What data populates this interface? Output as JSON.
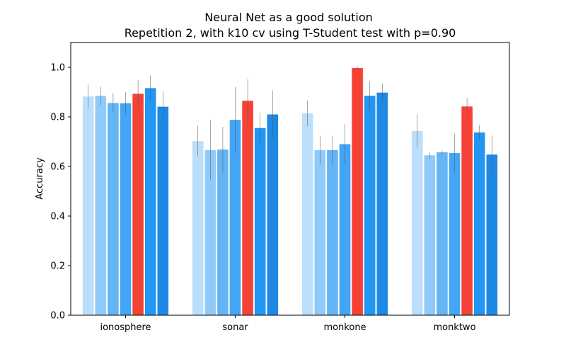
{
  "chart_data": {
    "type": "bar",
    "title": "Neural Net as a good solution",
    "subtitle": "Repetition 2, with k10 cv using T-Student test with p=0.90",
    "xlabel": "",
    "ylabel": "Accuracy",
    "ylim": [
      0.0,
      1.1
    ],
    "yticks": [
      "0.0",
      "0.2",
      "0.4",
      "0.6",
      "0.8",
      "1.0"
    ],
    "grid": false,
    "legend": "none",
    "categories": [
      "ionosphere",
      "sonar",
      "monkone",
      "monktwo"
    ],
    "series": [
      {
        "color": "#bbdefb",
        "values": [
          0.882,
          0.702,
          0.814,
          0.743
        ],
        "errors": [
          0.048,
          0.062,
          0.052,
          0.068
        ]
      },
      {
        "color": "#90caf9",
        "values": [
          0.885,
          0.666,
          0.666,
          0.645
        ],
        "errors": [
          0.038,
          0.122,
          0.058,
          0.012
        ]
      },
      {
        "color": "#64b5f6",
        "values": [
          0.856,
          0.668,
          0.666,
          0.657
        ],
        "errors": [
          0.04,
          0.092,
          0.058,
          0.008
        ]
      },
      {
        "color": "#42a5f5",
        "values": [
          0.855,
          0.788,
          0.69,
          0.654
        ],
        "errors": [
          0.045,
          0.133,
          0.08,
          0.078
        ]
      },
      {
        "color": "#f44336",
        "values": [
          0.893,
          0.865,
          0.997,
          0.842
        ],
        "errors": [
          0.055,
          0.087,
          0.007,
          0.035
        ]
      },
      {
        "color": "#2196f3",
        "values": [
          0.916,
          0.755,
          0.885,
          0.737
        ],
        "errors": [
          0.051,
          0.062,
          0.057,
          0.03
        ]
      },
      {
        "color": "#1e88e5",
        "values": [
          0.841,
          0.81,
          0.898,
          0.648
        ],
        "errors": [
          0.063,
          0.097,
          0.037,
          0.077
        ]
      }
    ]
  }
}
